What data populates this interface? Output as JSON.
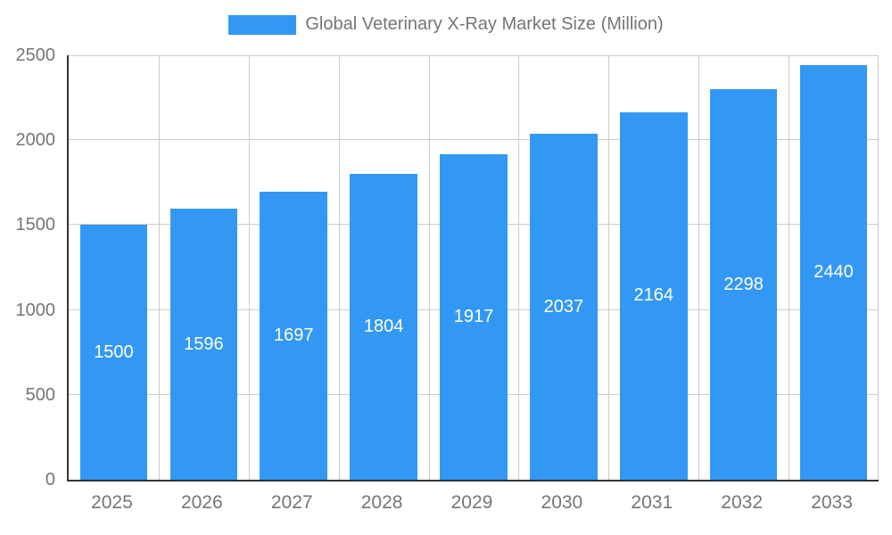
{
  "chart_data": {
    "type": "bar",
    "title": "Global Veterinary X-Ray Market Size (Million)",
    "categories": [
      "2025",
      "2026",
      "2027",
      "2028",
      "2029",
      "2030",
      "2031",
      "2032",
      "2033"
    ],
    "values": [
      1500,
      1596,
      1697,
      1804,
      1917,
      2037,
      2164,
      2298,
      2440
    ],
    "ylim": [
      0,
      2500
    ],
    "yticks": [
      0,
      500,
      1000,
      1500,
      2000,
      2500
    ],
    "xlabel": "",
    "ylabel": "",
    "legend_position": "top",
    "grid": true,
    "colors": {
      "bar": "#3398f4",
      "grid": "#cccccc",
      "axis_line": "#333333",
      "axis_text": "#757575",
      "bar_label_text": "#ffffff",
      "background": "#ffffff"
    }
  }
}
